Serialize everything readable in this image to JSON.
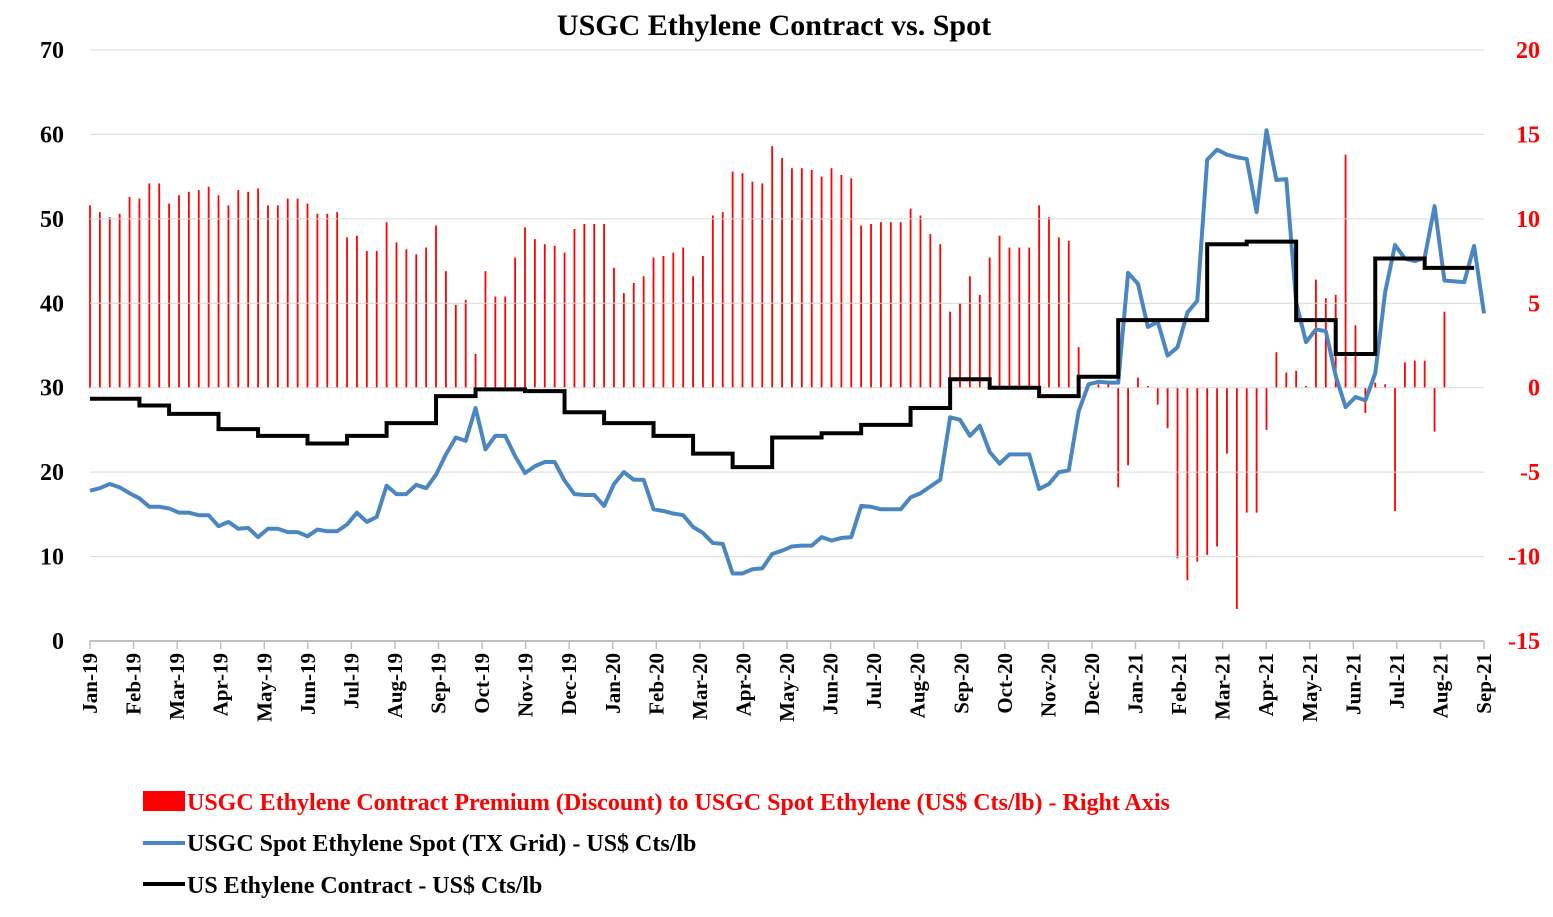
{
  "chart_data": {
    "type": "line",
    "title": "USGC Ethylene Contract vs. Spot",
    "x_tick_labels": [
      "Jan-19",
      "Feb-19",
      "Mar-19",
      "Apr-19",
      "May-19",
      "Jun-19",
      "Jul-19",
      "Aug-19",
      "Sep-19",
      "Oct-19",
      "Nov-19",
      "Dec-19",
      "Jan-20",
      "Feb-20",
      "Mar-20",
      "Apr-20",
      "May-20",
      "Jun-20",
      "Jul-20",
      "Aug-20",
      "Sep-20",
      "Oct-20",
      "Nov-20",
      "Dec-20",
      "Jan-21",
      "Feb-21",
      "Mar-21",
      "Apr-21",
      "May-21",
      "Jun-21",
      "Jul-21",
      "Aug-21",
      "Sep-21"
    ],
    "y_left": {
      "min": 0,
      "max": 70,
      "ticks": [
        0,
        10,
        20,
        30,
        40,
        50,
        60,
        70
      ]
    },
    "y_right": {
      "min": -15,
      "max": 20,
      "ticks": [
        -15,
        -10,
        -5,
        0,
        5,
        10,
        15,
        20
      ]
    },
    "legend_position": "bottom",
    "series": [
      {
        "name": "USGC Ethylene Contract Premium (Discount) to USGC Spot Ethylene (US$ Cts/lb) - Right Axis",
        "type": "bar",
        "axis": "right",
        "color": "#ff0000",
        "values": [
          10.8,
          10.4,
          10.1,
          10.3,
          11.3,
          11.2,
          12.1,
          12.1,
          10.9,
          11.4,
          11.6,
          11.7,
          11.9,
          11.4,
          10.8,
          11.7,
          11.6,
          11.8,
          10.8,
          10.8,
          11.2,
          11.2,
          10.9,
          10.3,
          10.3,
          10.4,
          8.9,
          9.0,
          8.1,
          8.1,
          9.8,
          8.6,
          8.2,
          7.9,
          8.3,
          9.6,
          6.9,
          4.9,
          5.2,
          2.0,
          6.9,
          5.4,
          5.4,
          7.7,
          9.5,
          8.8,
          8.5,
          8.4,
          8.0,
          9.4,
          9.7,
          9.7,
          9.7,
          7.1,
          5.6,
          6.2,
          6.6,
          7.7,
          7.8,
          8.0,
          8.3,
          6.6,
          7.8,
          10.2,
          10.4,
          12.8,
          12.7,
          12.2,
          12.1,
          14.3,
          13.6,
          13.0,
          13.0,
          12.9,
          12.5,
          13.0,
          12.6,
          12.4,
          9.6,
          9.7,
          9.8,
          9.8,
          9.8,
          10.6,
          10.2,
          9.1,
          8.5,
          4.5,
          5.0,
          6.6,
          5.5,
          7.7,
          9.0,
          8.3,
          8.3,
          8.3,
          10.8,
          10.1,
          8.9,
          8.7,
          2.4,
          0.3,
          0.2,
          0.3,
          -5.9,
          -4.6,
          0.6,
          0.1,
          -1.0,
          -2.4,
          -10.1,
          -11.4,
          -10.3,
          -9.9,
          -9.4,
          -3.9,
          -13.1,
          -7.4,
          -7.4,
          -2.5,
          2.1,
          0.9,
          1.0,
          0.1,
          6.4,
          5.3,
          5.5,
          13.8,
          3.7,
          -1.5,
          0.3,
          0.2,
          -7.3,
          1.5,
          1.6,
          1.6,
          -2.6,
          4.5
        ]
      },
      {
        "name": "USGC Spot Ethylene Spot (TX Grid) - US$ Cts/lb",
        "type": "line",
        "axis": "left",
        "color": "#4a86c1",
        "values": [
          17.8,
          18.1,
          18.6,
          18.2,
          17.5,
          16.9,
          15.9,
          15.9,
          15.7,
          15.2,
          15.2,
          14.9,
          14.9,
          13.6,
          14.1,
          13.3,
          13.4,
          12.3,
          13.3,
          13.3,
          12.9,
          12.9,
          12.4,
          13.2,
          13.0,
          13.0,
          13.8,
          15.2,
          14.1,
          14.7,
          18.4,
          17.4,
          17.4,
          18.5,
          18.1,
          19.7,
          22.1,
          24.1,
          23.7,
          27.6,
          22.7,
          24.3,
          24.3,
          21.9,
          19.9,
          20.7,
          21.2,
          21.2,
          19.0,
          17.4,
          17.3,
          17.3,
          16.0,
          18.6,
          20.0,
          19.1,
          19.1,
          15.6,
          15.4,
          15.1,
          14.9,
          13.5,
          12.8,
          11.6,
          11.5,
          8.0,
          8.0,
          8.5,
          8.6,
          10.3,
          10.7,
          11.2,
          11.3,
          11.3,
          12.3,
          11.9,
          12.2,
          12.3,
          16.0,
          15.9,
          15.6,
          15.6,
          15.6,
          17.0,
          17.5,
          18.3,
          19.1,
          26.5,
          26.2,
          24.3,
          25.5,
          22.4,
          21.0,
          22.1,
          22.1,
          22.1,
          18.0,
          18.6,
          20.0,
          20.2,
          27.2,
          30.4,
          30.7,
          30.6,
          30.6,
          43.6,
          42.3,
          37.2,
          37.8,
          33.8,
          34.8,
          38.9,
          40.3,
          57.0,
          58.2,
          57.6,
          57.3,
          57.1,
          50.8,
          60.5,
          54.6,
          54.7,
          40.1,
          35.4,
          36.9,
          36.7,
          31.4,
          27.7,
          28.9,
          28.5,
          31.7,
          41.3,
          46.9,
          45.3,
          45.0,
          45.4,
          51.5,
          42.7,
          42.6,
          42.5,
          46.8,
          38.8
        ]
      },
      {
        "name": "US Ethylene Contract - US$ Cts/lb",
        "type": "line",
        "axis": "left",
        "color": "#000000",
        "values": [
          28.7,
          28.7,
          28.7,
          28.7,
          28.7,
          27.9,
          27.9,
          27.9,
          26.9,
          26.9,
          26.9,
          26.9,
          26.9,
          25.1,
          25.1,
          25.1,
          25.1,
          24.3,
          24.3,
          24.3,
          24.3,
          24.3,
          23.4,
          23.4,
          23.4,
          23.4,
          24.3,
          24.3,
          24.3,
          24.3,
          25.8,
          25.8,
          25.8,
          25.8,
          25.8,
          29.0,
          29.0,
          29.0,
          29.0,
          29.8,
          29.8,
          29.8,
          29.8,
          29.8,
          29.6,
          29.6,
          29.6,
          29.6,
          27.1,
          27.1,
          27.1,
          27.1,
          25.8,
          25.8,
          25.8,
          25.8,
          25.8,
          24.3,
          24.3,
          24.3,
          24.3,
          22.2,
          22.2,
          22.2,
          22.2,
          20.6,
          20.6,
          20.6,
          20.6,
          24.1,
          24.1,
          24.1,
          24.1,
          24.1,
          24.6,
          24.6,
          24.6,
          24.6,
          25.6,
          25.6,
          25.6,
          25.6,
          25.6,
          27.6,
          27.6,
          27.6,
          27.6,
          31.0,
          31.0,
          31.0,
          31.0,
          30.0,
          30.0,
          30.0,
          30.0,
          30.0,
          29.0,
          29.0,
          29.0,
          29.0,
          31.3,
          31.3,
          31.3,
          31.3,
          38.0,
          38.0,
          38.0,
          38.0,
          38.0,
          38.0,
          38.0,
          38.0,
          38.0,
          47.0,
          47.0,
          47.0,
          47.0,
          47.3,
          47.3,
          47.3,
          47.3,
          47.3,
          38.0,
          38.0,
          38.0,
          38.0,
          34.0,
          34.0,
          34.0,
          34.0,
          45.3,
          45.3,
          45.3,
          45.3,
          45.3,
          44.2,
          44.2,
          44.2,
          44.2,
          44.2,
          44.2
        ]
      }
    ]
  }
}
